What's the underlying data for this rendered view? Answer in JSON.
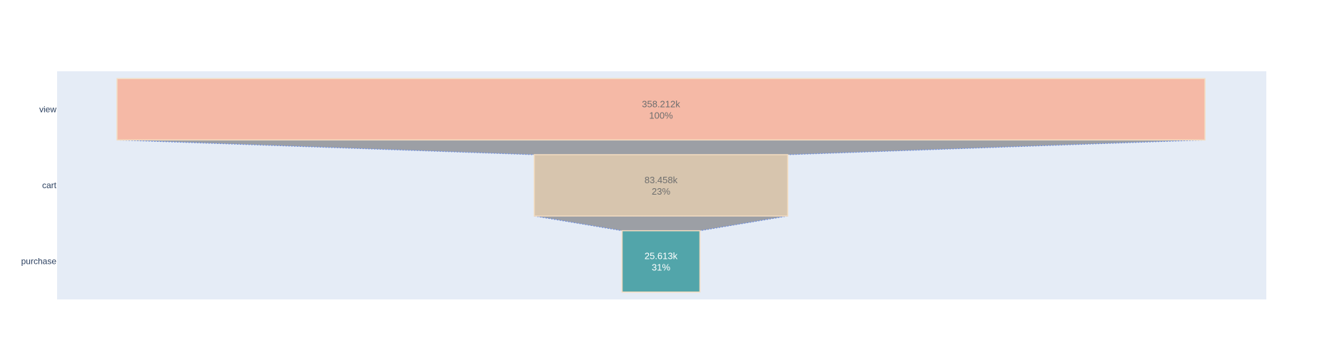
{
  "chart_data": {
    "type": "funnel",
    "stages": [
      "view",
      "cart",
      "purchase"
    ],
    "values": [
      358212,
      83458,
      25613
    ],
    "value_labels": [
      "358.212k",
      "83.458k",
      "25.613k"
    ],
    "percent_labels": [
      "100%",
      "23%",
      "31%"
    ],
    "colors": [
      "#f5b9a6",
      "#d7c5ae",
      "#52a5aa"
    ],
    "text_colors": [
      "#6e6e6e",
      "#6e6e6e",
      "#ffffff"
    ],
    "connector_color": "#9c9fa5",
    "plot_bgcolor": "#e5ecf6",
    "grid": false,
    "legend": "none"
  }
}
